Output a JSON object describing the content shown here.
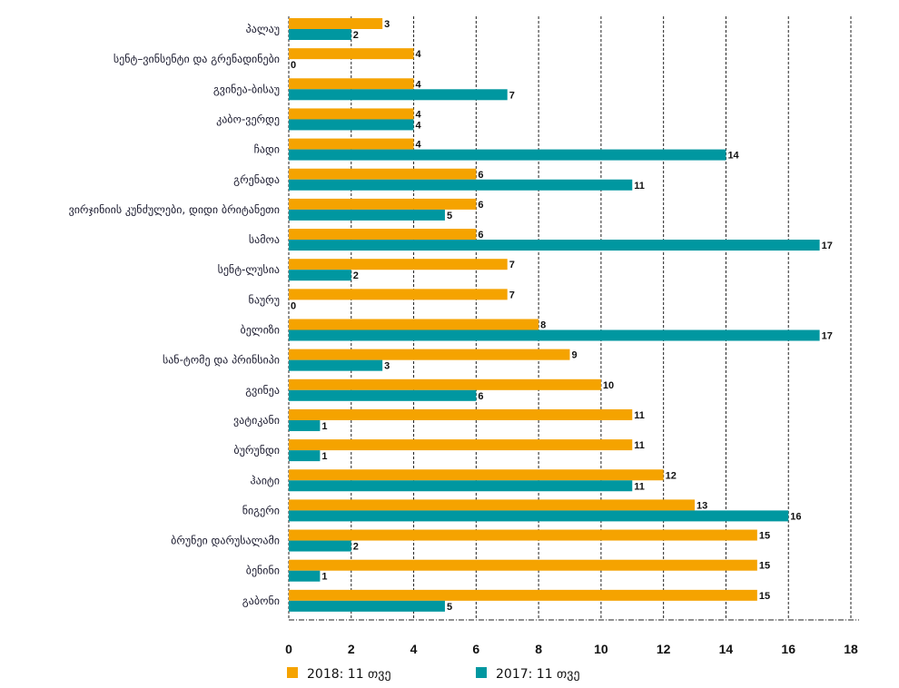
{
  "chart_data": {
    "type": "bar",
    "orientation": "horizontal",
    "title": "",
    "xlabel": "",
    "ylabel": "",
    "xlim": [
      0,
      18
    ],
    "xticks": [
      0,
      2,
      4,
      6,
      8,
      10,
      12,
      14,
      16,
      18
    ],
    "grid": "vertical dashed",
    "legend_position": "bottom",
    "categories": [
      "პალაუ",
      "სენტ–ვინსენტი და გრენადინები",
      "გვინეა-ბისაუ",
      "კაბო-ვერდე",
      "ჩადი",
      "გრენადა",
      "ვირჯინიის კუნძულები, დიდი ბრიტანეთი",
      "სამოა",
      "სენტ-ლუსია",
      "ნაურუ",
      "ბელიზი",
      "სან-ტომე და პრინსიპი",
      "გვინეა",
      "ვატიკანი",
      "ბურუნდი",
      "ჰაიტი",
      "ნიგერი",
      "ბრუნეი დარუსალამი",
      "ბენინი",
      "გაბონი"
    ],
    "series": [
      {
        "name": "2018: 11 თვე",
        "color": "#F5A300",
        "values": [
          3,
          4,
          4,
          4,
          4,
          6,
          6,
          6,
          7,
          7,
          8,
          9,
          10,
          11,
          11,
          12,
          13,
          15,
          15,
          15
        ]
      },
      {
        "name": "2017: 11 თვე",
        "color": "#0097A0",
        "values": [
          2,
          0,
          7,
          4,
          14,
          11,
          5,
          17,
          2,
          0,
          17,
          3,
          6,
          1,
          1,
          11,
          16,
          2,
          1,
          5
        ]
      }
    ]
  }
}
